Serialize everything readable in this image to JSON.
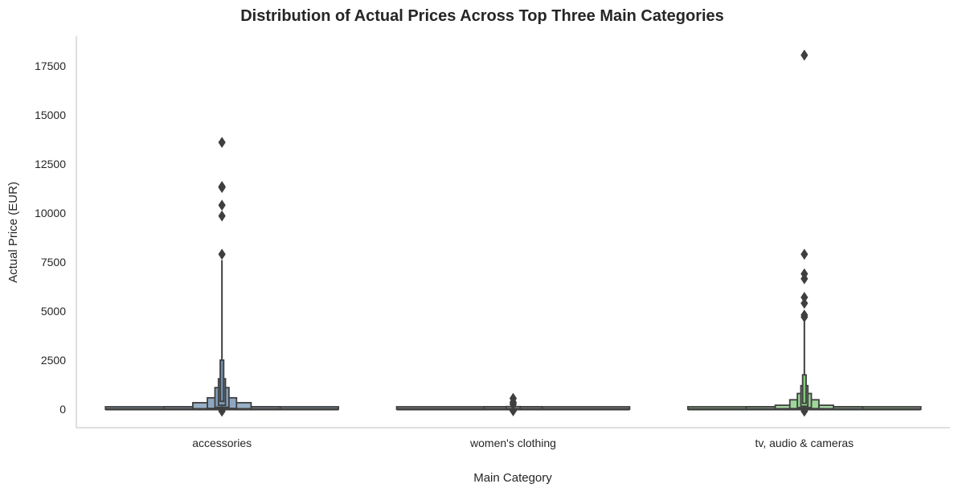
{
  "chart_data": {
    "type": "boxen",
    "title": "Distribution of Actual Prices Across Top Three Main Categories",
    "xlabel": "Main Category",
    "ylabel": "Actual Price (EUR)",
    "ylim": [
      -900,
      19100
    ],
    "yticks": [
      0,
      2500,
      5000,
      7500,
      10000,
      12500,
      15000,
      17500
    ],
    "grid": false,
    "categories": [
      "accessories",
      "women's clothing",
      "tv, audio & cameras"
    ],
    "colors": [
      "#6a8bad",
      "#7a7a7a",
      "#7ec87a"
    ],
    "series": [
      {
        "category": "accessories",
        "boxes": [
          {
            "width_frac": 1.0,
            "low": 0,
            "high": 20
          },
          {
            "width_frac": 0.5,
            "low": 0,
            "high": 120
          },
          {
            "width_frac": 0.25,
            "low": 10,
            "high": 330
          },
          {
            "width_frac": 0.125,
            "low": 40,
            "high": 580
          },
          {
            "width_frac": 0.06,
            "low": 100,
            "high": 1100
          },
          {
            "width_frac": 0.03,
            "low": 200,
            "high": 1550
          },
          {
            "width_frac": 0.015,
            "low": 400,
            "high": 2500
          }
        ],
        "whisker_high": 7600,
        "outliers": [
          7900,
          9850,
          10400,
          11300,
          11350,
          13600,
          -100
        ]
      },
      {
        "category": "women's clothing",
        "boxes": [
          {
            "width_frac": 1.0,
            "low": 0,
            "high": 15
          },
          {
            "width_frac": 0.25,
            "low": 0,
            "high": 50
          },
          {
            "width_frac": 0.06,
            "low": 10,
            "high": 120
          }
        ],
        "whisker_high": 200,
        "outliers": [
          250,
          350,
          550,
          -80
        ]
      },
      {
        "category": "tv, audio & cameras",
        "boxes": [
          {
            "width_frac": 1.0,
            "low": 0,
            "high": 20
          },
          {
            "width_frac": 0.5,
            "low": 0,
            "high": 90
          },
          {
            "width_frac": 0.25,
            "low": 10,
            "high": 200
          },
          {
            "width_frac": 0.125,
            "low": 30,
            "high": 480
          },
          {
            "width_frac": 0.06,
            "low": 80,
            "high": 800
          },
          {
            "width_frac": 0.03,
            "low": 150,
            "high": 1200
          },
          {
            "width_frac": 0.015,
            "low": 300,
            "high": 1750
          }
        ],
        "whisker_high": 4600,
        "outliers": [
          4700,
          4800,
          5400,
          5700,
          6650,
          6900,
          7900,
          18050,
          -100
        ]
      }
    ]
  }
}
